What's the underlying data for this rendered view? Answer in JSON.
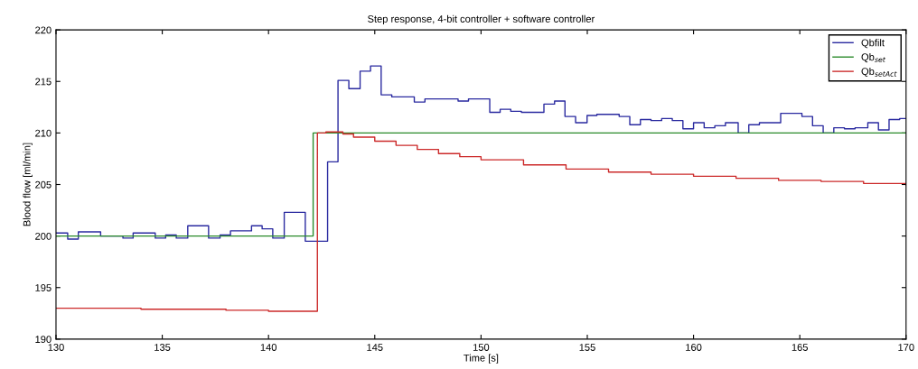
{
  "chart_data": {
    "type": "step",
    "title": "Step response, 4-bit controller + software controller",
    "xlabel": "Time [s]",
    "ylabel": "Blood flow [ml/min]",
    "xlim": [
      130,
      170
    ],
    "xticks": [
      130,
      135,
      140,
      145,
      150,
      155,
      160,
      165,
      170
    ],
    "ylim": [
      190,
      220
    ],
    "yticks": [
      190,
      195,
      200,
      205,
      210,
      215,
      220
    ],
    "grid": false,
    "legend": "top right",
    "series": [
      {
        "name": "Qbfilt",
        "color": "#2a2aa0",
        "x": [
          130,
          130.55,
          131.05,
          132.1,
          133.15,
          133.63,
          134.67,
          135.16,
          135.66,
          136.2,
          137.18,
          137.72,
          138.21,
          139.2,
          139.7,
          140.2,
          140.74,
          141.73,
          142.78,
          143.27,
          143.78,
          144.31,
          144.8,
          145.3,
          145.8,
          146.86,
          147.36,
          148.92,
          149.41,
          150.41,
          150.9,
          151.4,
          151.9,
          152.96,
          153.46,
          153.95,
          154.45,
          154.99,
          155.45,
          156.5,
          157.0,
          157.5,
          158.0,
          158.5,
          159.0,
          159.5,
          160.0,
          160.5,
          161.0,
          161.5,
          162.1,
          162.6,
          163.1,
          164.1,
          165.1,
          165.6,
          166.1,
          166.6,
          167.1,
          167.6,
          168.2,
          168.7,
          169.2,
          169.7,
          170
        ],
        "values": [
          200.3,
          199.7,
          200.4,
          200.0,
          199.8,
          200.3,
          199.8,
          200.1,
          199.8,
          201.0,
          199.8,
          200.1,
          200.5,
          201.0,
          200.7,
          199.8,
          202.3,
          199.5,
          207.2,
          215.1,
          214.3,
          216.0,
          216.5,
          213.7,
          213.5,
          213.0,
          213.3,
          213.1,
          213.3,
          212.0,
          212.3,
          212.1,
          212.0,
          212.8,
          213.1,
          211.6,
          211.0,
          211.7,
          211.8,
          211.6,
          210.8,
          211.3,
          211.2,
          211.4,
          211.2,
          210.4,
          211.0,
          210.5,
          210.7,
          211.0,
          210.0,
          210.8,
          211.0,
          211.9,
          211.6,
          210.7,
          210.0,
          210.5,
          210.4,
          210.5,
          211.0,
          210.3,
          211.3,
          211.4,
          211.4
        ]
      },
      {
        "name": "Qb$_{set}$",
        "color": "#2a8a2a",
        "x": [
          130,
          142.1,
          170
        ],
        "values": [
          200.0,
          210.0,
          210.0
        ]
      },
      {
        "name": "Qb$_{setAct}$",
        "color": "#cc2a2a",
        "x": [
          130,
          134,
          138,
          140,
          142.3,
          142.7,
          143.5,
          144.0,
          145,
          146,
          147,
          148,
          149,
          150,
          152,
          154,
          156,
          158,
          160,
          162,
          164,
          166,
          168,
          170
        ],
        "values": [
          193.0,
          192.9,
          192.8,
          192.7,
          210.0,
          210.1,
          209.9,
          209.6,
          209.2,
          208.8,
          208.4,
          208.0,
          207.7,
          207.4,
          206.9,
          206.5,
          206.2,
          206.0,
          205.8,
          205.6,
          205.4,
          205.3,
          205.1,
          204.9
        ]
      }
    ]
  }
}
